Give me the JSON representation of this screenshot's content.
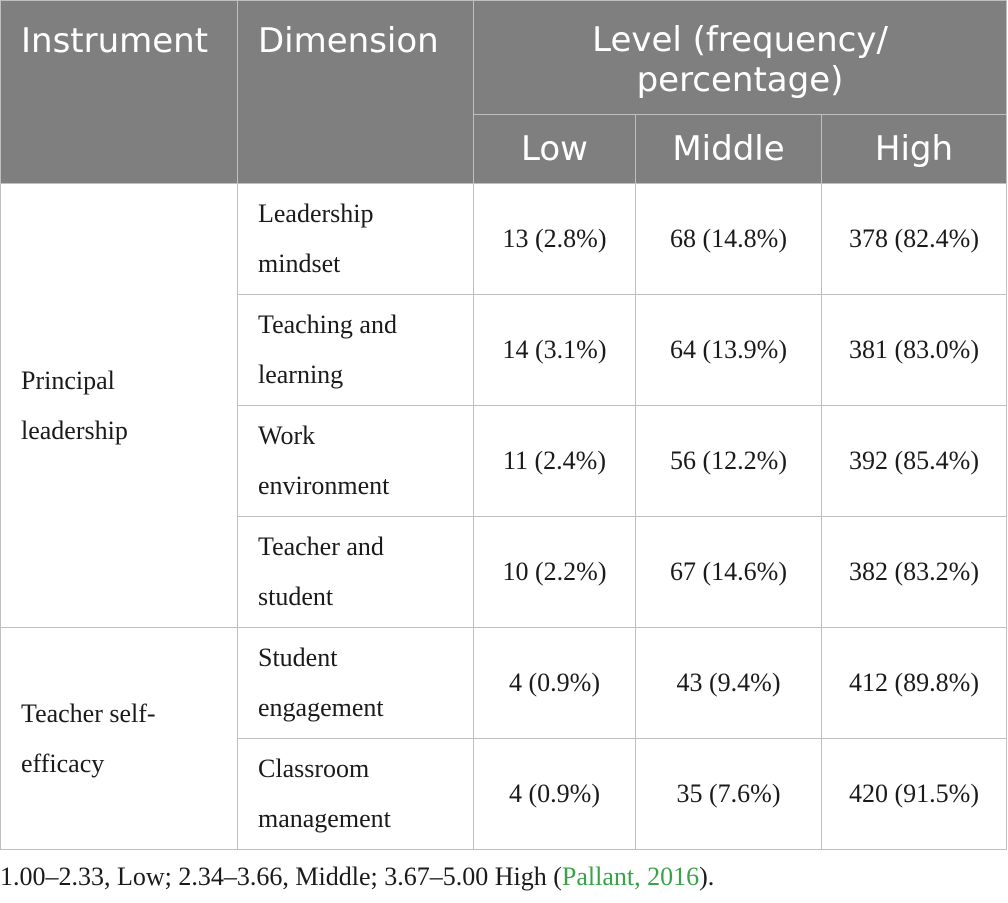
{
  "header": {
    "instrument": "Instrument",
    "dimension": "Dimension",
    "level": "Level (frequency/ percentage)",
    "low": "Low",
    "middle": "Middle",
    "high": "High"
  },
  "groups": [
    {
      "instrument": "Principal leadership",
      "rows": [
        {
          "dimension": "Leadership mindset",
          "low": "13 (2.8%)",
          "middle": "68 (14.8%)",
          "high": "378 (82.4%)"
        },
        {
          "dimension": "Teaching and learning",
          "low": "14 (3.1%)",
          "middle": "64 (13.9%)",
          "high": "381 (83.0%)"
        },
        {
          "dimension": "Work environment",
          "low": "11 (2.4%)",
          "middle": "56 (12.2%)",
          "high": "392 (85.4%)"
        },
        {
          "dimension": "Teacher and student",
          "low": "10 (2.2%)",
          "middle": "67 (14.6%)",
          "high": "382 (83.2%)"
        }
      ]
    },
    {
      "instrument": "Teacher self-efficacy",
      "rows": [
        {
          "dimension": "Student engagement",
          "low": "4 (0.9%)",
          "middle": "43 (9.4%)",
          "high": "412 (89.8%)"
        },
        {
          "dimension": "Classroom management",
          "low": "4 (0.9%)",
          "middle": "35 (7.6%)",
          "high": "420 (91.5%)"
        }
      ]
    }
  ],
  "note": {
    "text": "1.00–2.33, Low; 2.34–3.66, Middle; 3.67–5.00 High (",
    "citation": "Pallant, 2016",
    "end": ")."
  },
  "colors": {
    "header_bg": "#7f7f7f",
    "header_text": "#ffffff",
    "border": "#bfbfbf",
    "citation_link": "#3aa24a"
  }
}
